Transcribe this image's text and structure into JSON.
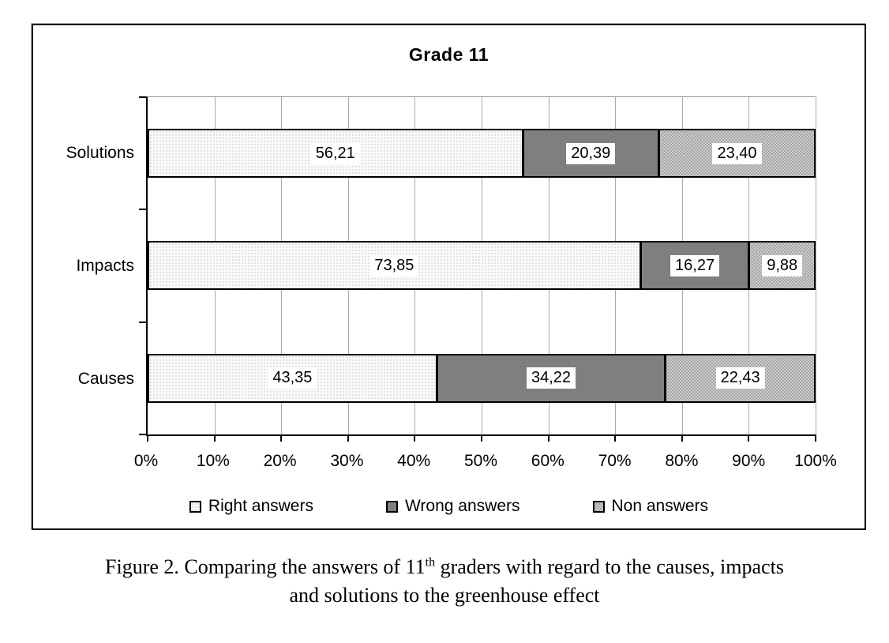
{
  "figure": {
    "title": "Grade 11",
    "caption": {
      "line1_prefix": "Figure 2. Comparing the answers of 11",
      "line1_sup": "th",
      "line1_suffix": " graders with regard to the causes, impacts",
      "line2": "and solutions to the greenhouse effect"
    }
  },
  "chart_data": {
    "type": "bar",
    "orientation": "horizontal",
    "stacked": true,
    "title": "Grade 11",
    "categories": [
      "Solutions",
      "Impacts",
      "Causes"
    ],
    "series": [
      {
        "name": "Right answers",
        "values": [
          56.21,
          73.85,
          43.35
        ],
        "labels": [
          "56,21",
          "73,85",
          "43,35"
        ],
        "pattern": "dots-light",
        "color": "#f0f0f0"
      },
      {
        "name": "Wrong answers",
        "values": [
          20.39,
          16.27,
          34.22
        ],
        "labels": [
          "20,39",
          "16,27",
          "34,22"
        ],
        "pattern": "solid",
        "color": "#7f7f7f"
      },
      {
        "name": "Non answers",
        "values": [
          23.4,
          9.88,
          22.43
        ],
        "labels": [
          "23,40",
          "9,88",
          "22,43"
        ],
        "pattern": "dots-dark",
        "color": "#c5c5c5"
      }
    ],
    "x_axis": {
      "min": 0,
      "max": 100,
      "tick_step": 10,
      "tick_labels": [
        "0%",
        "10%",
        "20%",
        "30%",
        "40%",
        "50%",
        "60%",
        "70%",
        "80%",
        "90%",
        "100%"
      ]
    },
    "grid": true,
    "grid_color": "#aaaaaa",
    "axis_color": "#000000",
    "legend_position": "bottom",
    "value_label_style": "white-box"
  }
}
